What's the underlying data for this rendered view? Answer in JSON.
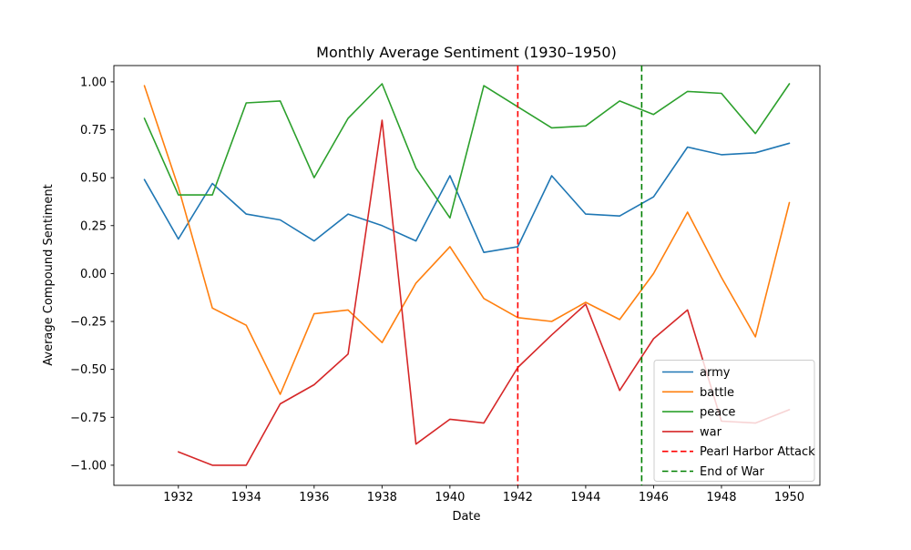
{
  "chart_data": {
    "type": "line",
    "title": "Monthly Average Sentiment (1930–1950)",
    "xlabel": "Date",
    "ylabel": "Average Compound Sentiment",
    "xlim": [
      1930.1,
      1950.9
    ],
    "ylim": [
      -1.105,
      1.085
    ],
    "xticks": [
      1932,
      1934,
      1936,
      1938,
      1940,
      1942,
      1944,
      1946,
      1948,
      1950
    ],
    "yticks": [
      -1.0,
      -0.75,
      -0.5,
      -0.25,
      0.0,
      0.25,
      0.5,
      0.75,
      1.0
    ],
    "grid": false,
    "legend_position": "lower right",
    "series": [
      {
        "name": "army",
        "color": "#1f77b4",
        "x": [
          1931,
          1932,
          1933,
          1934,
          1935,
          1936,
          1937,
          1938,
          1939,
          1940,
          1941,
          1942,
          1943,
          1944,
          1945,
          1946,
          1947,
          1948,
          1949,
          1950
        ],
        "y": [
          0.49,
          0.18,
          0.47,
          0.31,
          0.28,
          0.17,
          0.31,
          0.25,
          0.17,
          0.51,
          0.11,
          0.14,
          0.51,
          0.31,
          0.3,
          0.4,
          0.66,
          0.62,
          0.63,
          0.68
        ]
      },
      {
        "name": "battle",
        "color": "#ff7f0e",
        "x": [
          1931,
          1932,
          1933,
          1934,
          1935,
          1936,
          1937,
          1938,
          1939,
          1940,
          1941,
          1942,
          1943,
          1944,
          1945,
          1946,
          1947,
          1948,
          1949,
          1950
        ],
        "y": [
          0.98,
          0.45,
          -0.18,
          -0.27,
          -0.63,
          -0.21,
          -0.19,
          -0.36,
          -0.05,
          0.14,
          -0.13,
          -0.23,
          -0.25,
          -0.15,
          -0.24,
          0.0,
          0.32,
          -0.02,
          -0.33,
          0.37
        ]
      },
      {
        "name": "peace",
        "color": "#2ca02c",
        "x": [
          1931,
          1932,
          1933,
          1934,
          1935,
          1936,
          1937,
          1938,
          1939,
          1940,
          1941,
          1942,
          1943,
          1944,
          1945,
          1946,
          1947,
          1948,
          1949,
          1950
        ],
        "y": [
          0.81,
          0.41,
          0.41,
          0.89,
          0.9,
          0.5,
          0.81,
          0.99,
          0.55,
          0.29,
          0.98,
          0.87,
          0.76,
          0.77,
          0.9,
          0.83,
          0.95,
          0.94,
          0.73,
          0.99
        ]
      },
      {
        "name": "war",
        "color": "#d62728",
        "x": [
          1932,
          1933,
          1934,
          1935,
          1936,
          1937,
          1938,
          1939,
          1940,
          1941,
          1942,
          1943,
          1944,
          1945,
          1946,
          1947,
          1948,
          1949,
          1950
        ],
        "y": [
          -0.93,
          -1.0,
          -1.0,
          -0.68,
          -0.58,
          -0.42,
          0.8,
          -0.89,
          -0.76,
          -0.78,
          -0.49,
          -0.32,
          -0.16,
          -0.61,
          -0.34,
          -0.19,
          -0.77,
          -0.78,
          -0.71
        ]
      }
    ],
    "vlines": [
      {
        "name": "pearl-harbor-attack",
        "label": "Pearl Harbor Attack",
        "x": 1942.0,
        "color": "#ff0000",
        "style": "dashed"
      },
      {
        "name": "end-of-war",
        "label": "End of War",
        "x": 1945.65,
        "color": "#008000",
        "style": "dashed"
      }
    ],
    "legend_labels": [
      "army",
      "battle",
      "peace",
      "war",
      "Pearl Harbor Attack",
      "End of War"
    ]
  }
}
